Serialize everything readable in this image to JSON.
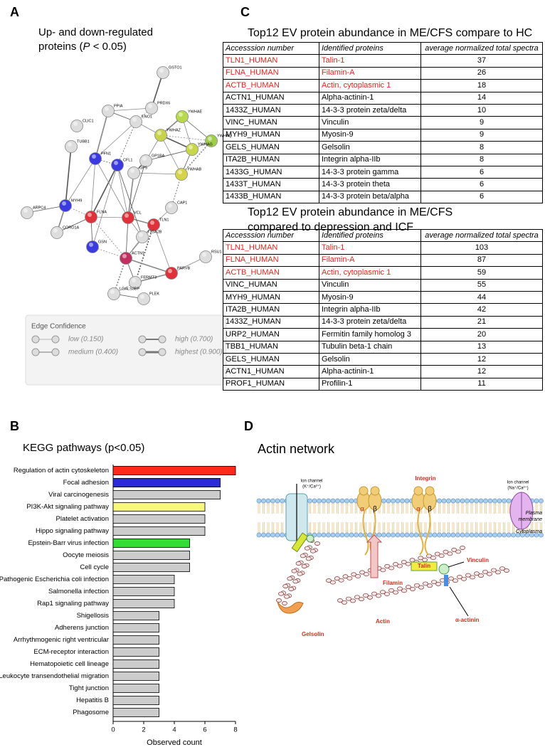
{
  "panel_labels": [
    "A",
    "B",
    "C",
    "D"
  ],
  "network": {
    "title_line1": "Up- and down-regulated",
    "title_line2": [
      "proteins (",
      "P",
      " < 0.05)"
    ],
    "nodes": [
      "GSTO1",
      "PRDX6",
      "PPIA",
      "ENO1",
      "CLIC1",
      "TUBB1",
      "YWHAE",
      "YWHAZ",
      "YWHAQ",
      "YWHAG",
      "YWHAB",
      "PFN1",
      "CFL1",
      "GP1BA",
      "GP5",
      "MYH9",
      "FLNA",
      "VCL",
      "TLN1",
      "CAP1",
      "ARPC4",
      "CORO1A",
      "ITGA2B",
      "GSN",
      "ACTN1",
      "RSU1",
      "PARVB",
      "FERMT3",
      "LGALS3BP",
      "PLEK"
    ],
    "legend": {
      "title": "Edge Confidence",
      "items": [
        "low (0.150)",
        "medium (0.400)",
        "high (0.700)",
        "highest (0.900)"
      ]
    }
  },
  "chart_data": {
    "type": "bar",
    "orientation": "horizontal",
    "title": "KEGG pathways (p<0.05)",
    "xlabel": "Observed count",
    "categories": [
      "Regulation of actin cytoskeleton",
      "Focal adhesion",
      "Viral carcinogenesis",
      "PI3K-Akt signaling pathway",
      "Platelet activation",
      "Hippo signaling pathway",
      "Epstein-Barr virus infection",
      "Oocyte meiosis",
      "Cell cycle",
      "Pathogenic Escherichia coli infection",
      "Salmonella infection",
      "Rap1 signaling pathway",
      "Shigellosis",
      "Adherens junction",
      "Arrhythmogenic right ventricular",
      "ECM-receptor interaction",
      "Hematopoietic cell lineage",
      "Leukocyte transendothelial migration",
      "Tight junction",
      "Hepatitis B",
      "Phagosome"
    ],
    "values": [
      8,
      7,
      7,
      6,
      6,
      6,
      5,
      5,
      5,
      4,
      4,
      4,
      3,
      3,
      3,
      3,
      3,
      3,
      3,
      3,
      3
    ],
    "colors": [
      "#ff2a1a",
      "#2b2bd6",
      "#cccccc",
      "#f7f77a",
      "#cccccc",
      "#cccccc",
      "#33dd33",
      "#cccccc",
      "#cccccc",
      "#cccccc",
      "#cccccc",
      "#cccccc",
      "#cccccc",
      "#cccccc",
      "#cccccc",
      "#cccccc",
      "#cccccc",
      "#cccccc",
      "#cccccc",
      "#cccccc",
      "#cccccc"
    ],
    "xlim": [
      0,
      8
    ],
    "xticks": [
      0,
      2,
      4,
      6,
      8
    ]
  },
  "tables": [
    {
      "title": [
        "Top12 EV protein abundance in ME/CFS compare to HC"
      ],
      "header": [
        "Accesssion number",
        "Identified proteins",
        "average normalized total spectra"
      ],
      "rows": [
        [
          "TLN1_HUMAN",
          "Talin-1",
          "37"
        ],
        [
          "FLNA_HUMAN",
          "Filamin-A",
          "26"
        ],
        [
          "ACTB_HUMAN",
          "Actin, cytoplasmic 1",
          "18"
        ],
        [
          "ACTN1_HUMAN",
          "Alpha-actinin-1",
          "14"
        ],
        [
          "1433Z_HUMAN",
          "14-3-3 protein zeta/delta",
          "10"
        ],
        [
          "VINC_HUMAN",
          "Vinculin",
          "9"
        ],
        [
          "MYH9_HUMAN",
          "Myosin-9",
          "9"
        ],
        [
          "GELS_HUMAN",
          "Gelsolin",
          "8"
        ],
        [
          "ITA2B_HUMAN",
          "Integrin alpha-IIb",
          "8"
        ],
        [
          "1433G_HUMAN",
          "14-3-3 protein gamma",
          "6"
        ],
        [
          "1433T_HUMAN",
          "14-3-3 protein theta",
          "6"
        ],
        [
          "1433B_HUMAN",
          "14-3-3 protein beta/alpha",
          "6"
        ]
      ],
      "highlighted_rows": [
        0,
        1,
        2
      ]
    },
    {
      "title": [
        "Top12 EV protein abundance in ME/CFS",
        "compared to depression and ICF"
      ],
      "header": [
        "Accesssion number",
        "Identified proteins",
        "average normalized total spectra"
      ],
      "rows": [
        [
          "TLN1_HUMAN",
          "Talin-1",
          "103"
        ],
        [
          "FLNA_HUMAN",
          "Filamin-A",
          "87"
        ],
        [
          "ACTB_HUMAN",
          "Actin, cytoplasmic 1",
          "59"
        ],
        [
          "VINC_HUMAN",
          "Vinculin",
          "55"
        ],
        [
          "MYH9_HUMAN",
          "Myosin-9",
          "44"
        ],
        [
          "ITA2B_HUMAN",
          "Integrin alpha-IIb",
          "42"
        ],
        [
          "1433Z_HUMAN",
          "14-3-3 protein zeta/delta",
          "21"
        ],
        [
          "URP2_HUMAN",
          "Fermitin family homolog 3",
          "20"
        ],
        [
          "TBB1_HUMAN",
          "Tubulin beta-1 chain",
          "13"
        ],
        [
          "GELS_HUMAN",
          "Gelsolin",
          "12"
        ],
        [
          "ACTN1_HUMAN",
          "Alpha-actinin-1",
          "12"
        ],
        [
          "PROF1_HUMAN",
          "Profilin-1",
          "11"
        ]
      ],
      "highlighted_rows": [
        0,
        1,
        2
      ]
    }
  ],
  "highlight_color": "#e8251f",
  "diagram": {
    "title": "Actin network",
    "ion_channel_1": [
      "Ion channel",
      "(K⁺/Ca²⁺)"
    ],
    "ion_channel_2": [
      "Ion channel",
      "(Na⁺/Ca²⁺)"
    ],
    "integrin": "Integrin",
    "alpha": "α",
    "beta": "β",
    "plasma_membrane": [
      "Plasma",
      "membrane"
    ],
    "cytoplasma": "Cytoplasma",
    "filamin": "Filamin",
    "talin": "Talin",
    "vinculin": "Vinculin",
    "actin": "Actin",
    "alpha_actinin": "α-actinin",
    "gelsolin": "Gelsolin"
  }
}
